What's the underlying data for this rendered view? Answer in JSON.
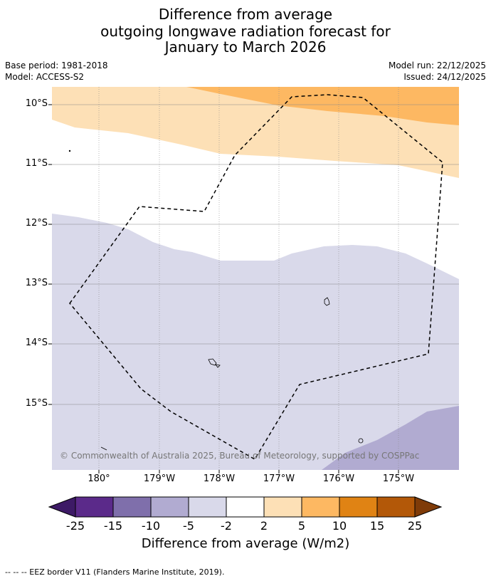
{
  "title": {
    "line1": "Difference from average",
    "line2": "outgoing longwave radiation forecast for",
    "line3": "January to March 2026"
  },
  "meta": {
    "base_period": "Base period: 1981-2018",
    "model": "Model: ACCESS-S2",
    "model_run": "Model run: 22/12/2025",
    "issued": "Issued: 24/12/2025"
  },
  "map": {
    "lat_labels": [
      "10°S",
      "11°S",
      "12°S",
      "13°S",
      "14°S",
      "15°S"
    ],
    "lon_labels": [
      "180°",
      "179°W",
      "178°W",
      "177°W",
      "176°W",
      "175°W"
    ],
    "copyright": "© Commonwealth of Australia 2025, Bureau of Meteorology, supported by COSPPac"
  },
  "colorbar": {
    "ticks": [
      "-25",
      "-15",
      "-10",
      "-5",
      "-2",
      "2",
      "5",
      "10",
      "15",
      "25"
    ],
    "colors": [
      "#3d1a66",
      "#5b2a8a",
      "#7f6fab",
      "#b1abd1",
      "#d9d9ea",
      "#ffffff",
      "#fde0b6",
      "#fdb862",
      "#e08314",
      "#b35808",
      "#7f3b08"
    ],
    "label": "Difference from average (W/m2)"
  },
  "legend": {
    "eez": "--  --  -- EEZ border V11 (Flanders Marine Institute, 2019)."
  }
}
